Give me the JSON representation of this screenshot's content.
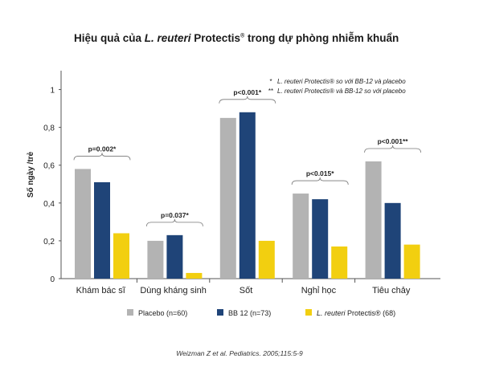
{
  "title": {
    "prefix": "Hiệu quả của ",
    "species": "L. reuteri",
    "brand": " Protectis",
    "reg": "®",
    "suffix": " trong dự phòng nhiễm khuẩn"
  },
  "citation": "Weizman Z et al. Pediatrics. 2005;115:5-9",
  "notes": [
    {
      "marker": "*",
      "species": "L. reuteri",
      "text": " Protectis® so với BB-12 và placebo"
    },
    {
      "marker": "**",
      "species": "L. reuteri",
      "text": " Protectis® và BB-12 so với placebo"
    }
  ],
  "chart_data": {
    "type": "bar",
    "ylabel": "Số ngày /trẻ",
    "xlabel": "",
    "ylim": [
      0,
      1.1
    ],
    "yticks": [
      "0",
      "0,2",
      "0,4",
      "0,6",
      "0,8",
      "1"
    ],
    "ytick_values": [
      0,
      0.2,
      0.4,
      0.6,
      0.8,
      1.0
    ],
    "categories": [
      "Khám bác sĩ",
      "Dùng kháng sinh",
      "Sốt",
      "Nghỉ học",
      "Tiêu chảy"
    ],
    "series": [
      {
        "name": "Placebo (n=60)",
        "color": "#b3b3b3",
        "values": [
          0.58,
          0.2,
          0.85,
          0.45,
          0.62
        ]
      },
      {
        "name": "BB 12 (n=73)",
        "color": "#1f4478",
        "values": [
          0.51,
          0.23,
          0.88,
          0.42,
          0.4
        ]
      },
      {
        "name": "L. reuteri Protectis® (68)",
        "color": "#f2cf10",
        "values": [
          0.24,
          0.03,
          0.2,
          0.17,
          0.18
        ]
      }
    ],
    "annotations": [
      "p=0.002*",
      "p=0.037*",
      "p<0.001*",
      "p<0.015*",
      "p<0.001**"
    ],
    "legend_position": "bottom",
    "grid": false
  }
}
